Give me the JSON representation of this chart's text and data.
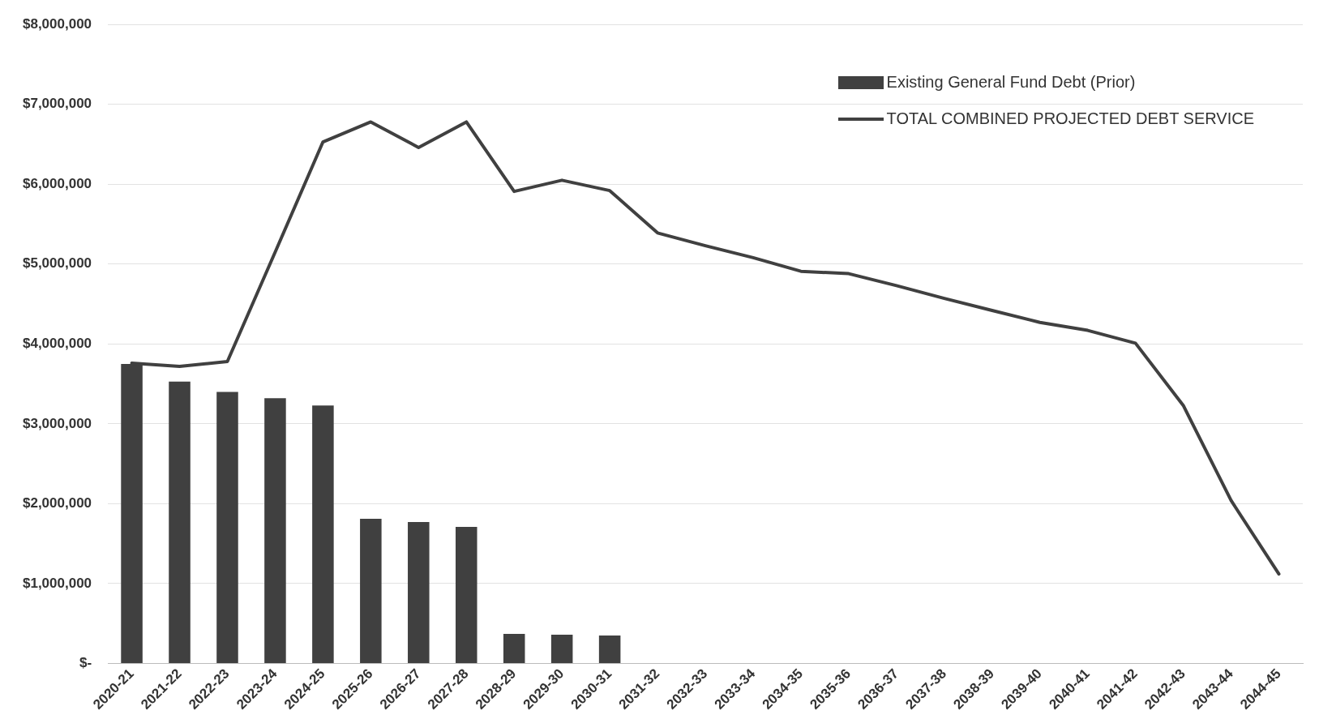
{
  "chart_data": {
    "type": "bar",
    "categories": [
      "2020-21",
      "2021-22",
      "2022-23",
      "2023-24",
      "2024-25",
      "2025-26",
      "2026-27",
      "2027-28",
      "2028-29",
      "2029-30",
      "2030-31",
      "2031-32",
      "2032-33",
      "2033-34",
      "2034-35",
      "2035-36",
      "2036-37",
      "2037-38",
      "2038-39",
      "2039-40",
      "2040-41",
      "2041-42",
      "2042-43",
      "2043-44",
      "2044-45"
    ],
    "series": [
      {
        "name": "Existing General Fund Debt (Prior)",
        "color": "#404040",
        "values": [
          3750000,
          3530000,
          3400000,
          3320000,
          3230000,
          1810000,
          1770000,
          1710000,
          370000,
          360000,
          350000,
          null,
          null,
          null,
          null,
          null,
          null,
          null,
          null,
          null,
          null,
          null,
          null,
          null,
          null
        ]
      },
      {
        "name": "TOTAL COMBINED PROJECTED DEBT SERVICE",
        "type": "line",
        "color": "#404040",
        "values": [
          3760000,
          3720000,
          3780000,
          5150000,
          6530000,
          6780000,
          6460000,
          6780000,
          5910000,
          6050000,
          5920000,
          5390000,
          5230000,
          5080000,
          4910000,
          4880000,
          4730000,
          4570000,
          4420000,
          4270000,
          4170000,
          4010000,
          3230000,
          2040000,
          1120000
        ]
      }
    ],
    "ylim": [
      0,
      8000000
    ],
    "yticks": [
      {
        "value": 0,
        "label": "$-"
      },
      {
        "value": 1000000,
        "label": "$1,000,000"
      },
      {
        "value": 2000000,
        "label": "$2,000,000"
      },
      {
        "value": 3000000,
        "label": "$3,000,000"
      },
      {
        "value": 4000000,
        "label": "$4,000,000"
      },
      {
        "value": 5000000,
        "label": "$5,000,000"
      },
      {
        "value": 6000000,
        "label": "$6,000,000"
      },
      {
        "value": 7000000,
        "label": "$7,000,000"
      },
      {
        "value": 8000000,
        "label": "$8,000,000"
      }
    ],
    "grid": "y",
    "legend": "top right",
    "marker": "none"
  }
}
